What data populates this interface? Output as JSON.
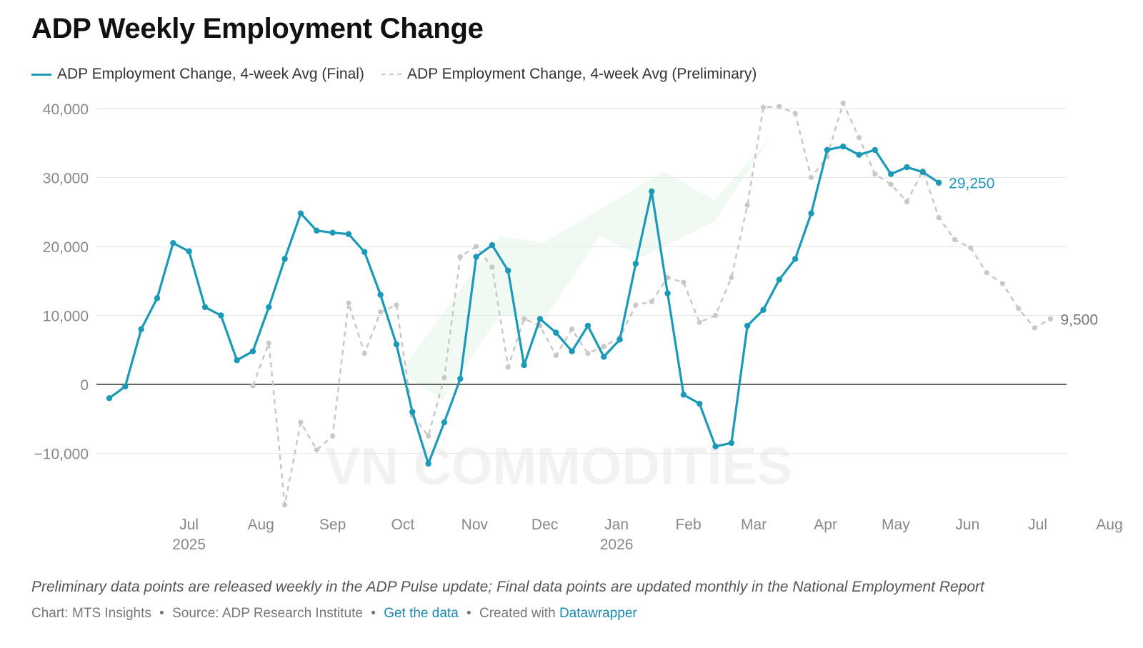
{
  "title": "ADP Weekly Employment Change",
  "legend": {
    "final": "ADP Employment Change, 4-week Avg (Final)",
    "preliminary": "ADP Employment Change, 4-week Avg (Preliminary)"
  },
  "footnote": "Preliminary data points are released weekly in the ADP Pulse update; Final data points are updated monthly in the National Employment Report",
  "credits": {
    "chart": "Chart: MTS Insights",
    "source": "Source: ADP Research Institute",
    "get_data": "Get the data",
    "created_with": "Created with",
    "datawrapper": "Datawrapper",
    "separator": "•"
  },
  "watermark": "VN COMMODITIES",
  "colors": {
    "final": "#1b9ab8",
    "preliminary": "#c8c8c8",
    "grid": "#e6e6e6",
    "zero": "#333333",
    "axis_text": "#888888"
  },
  "chart_data": {
    "type": "line",
    "title": "ADP Weekly Employment Change",
    "ylim": [
      -18000,
      41000
    ],
    "yticks": [
      {
        "value": 40000,
        "label": "40,000"
      },
      {
        "value": 30000,
        "label": "30,000"
      },
      {
        "value": 20000,
        "label": "20,000"
      },
      {
        "value": 10000,
        "label": "10,000"
      },
      {
        "value": 0,
        "label": "0"
      },
      {
        "value": -10000,
        "label": "−10,000"
      }
    ],
    "xticks": [
      {
        "week": 5,
        "label": "Jul",
        "sublabel": "2025"
      },
      {
        "week": 9.5,
        "label": "Aug",
        "sublabel": ""
      },
      {
        "week": 14,
        "label": "Sep",
        "sublabel": ""
      },
      {
        "week": 18.4,
        "label": "Oct",
        "sublabel": ""
      },
      {
        "week": 22.9,
        "label": "Nov",
        "sublabel": ""
      },
      {
        "week": 27.3,
        "label": "Dec",
        "sublabel": ""
      },
      {
        "week": 31.8,
        "label": "Jan",
        "sublabel": "2026"
      },
      {
        "week": 36.3,
        "label": "Feb",
        "sublabel": ""
      },
      {
        "week": 40.4,
        "label": "Mar",
        "sublabel": ""
      },
      {
        "week": 44.9,
        "label": "Apr",
        "sublabel": ""
      },
      {
        "week": 49.3,
        "label": "May",
        "sublabel": ""
      },
      {
        "week": 53.8,
        "label": "Jun",
        "sublabel": ""
      },
      {
        "week": 58.2,
        "label": "Jul",
        "sublabel": ""
      },
      {
        "week": 62.7,
        "label": "Aug",
        "sublabel": ""
      }
    ],
    "xlim": [
      0,
      63
    ],
    "series": [
      {
        "name": "ADP Employment Change, 4-week Avg (Final)",
        "style": "solid",
        "points": [
          [
            0,
            -2000
          ],
          [
            1,
            -300
          ],
          [
            2,
            8000
          ],
          [
            3,
            12500
          ],
          [
            4,
            20500
          ],
          [
            5,
            19300
          ],
          [
            6,
            11200
          ],
          [
            7,
            10000
          ],
          [
            8,
            3500
          ],
          [
            9,
            4800
          ],
          [
            10,
            11200
          ],
          [
            11,
            18200
          ],
          [
            12,
            24800
          ],
          [
            13,
            22300
          ],
          [
            14,
            22000
          ],
          [
            15,
            21800
          ],
          [
            16,
            19200
          ],
          [
            17,
            13000
          ],
          [
            18,
            5800
          ],
          [
            19,
            -4000
          ],
          [
            20,
            -11500
          ],
          [
            21,
            -5500
          ],
          [
            22,
            800
          ],
          [
            23,
            18500
          ],
          [
            24,
            20200
          ],
          [
            25,
            16500
          ],
          [
            26,
            2800
          ],
          [
            27,
            9500
          ],
          [
            28,
            7500
          ],
          [
            29,
            4800
          ],
          [
            30,
            8500
          ],
          [
            31,
            4000
          ],
          [
            32,
            6500
          ],
          [
            33,
            17500
          ],
          [
            34,
            28000
          ],
          [
            35,
            13200
          ],
          [
            36,
            -1500
          ],
          [
            37,
            -2800
          ],
          [
            38,
            -9000
          ],
          [
            39,
            -8500
          ],
          [
            40,
            8500
          ],
          [
            41,
            10800
          ],
          [
            42,
            15200
          ],
          [
            43,
            18200
          ],
          [
            44,
            24800
          ],
          [
            45,
            34000
          ],
          [
            46,
            34500
          ],
          [
            47,
            33300
          ],
          [
            48,
            34000
          ],
          [
            49,
            30500
          ],
          [
            50,
            31500
          ],
          [
            51,
            30800
          ],
          [
            52,
            29250
          ]
        ],
        "end_label": "29,250"
      },
      {
        "name": "ADP Employment Change, 4-week Avg (Preliminary)",
        "style": "dashed",
        "points": [
          [
            9,
            -200
          ],
          [
            10,
            6000
          ],
          [
            11,
            -17500
          ],
          [
            12,
            -5500
          ],
          [
            13,
            -9500
          ],
          [
            14,
            -7500
          ],
          [
            15,
            11800
          ],
          [
            16,
            4500
          ],
          [
            17,
            10500
          ],
          [
            18,
            11500
          ],
          [
            19,
            -4500
          ],
          [
            20,
            -7500
          ],
          [
            21,
            1000
          ],
          [
            22,
            18500
          ],
          [
            23,
            20000
          ],
          [
            24,
            17000
          ],
          [
            25,
            2500
          ],
          [
            26,
            9500
          ],
          [
            27,
            8500
          ],
          [
            28,
            4200
          ],
          [
            29,
            8000
          ],
          [
            30,
            4500
          ],
          [
            31,
            5500
          ],
          [
            32,
            6800
          ],
          [
            33,
            11500
          ],
          [
            34,
            12000
          ],
          [
            35,
            15500
          ],
          [
            36,
            14800
          ],
          [
            37,
            9000
          ],
          [
            38,
            10000
          ],
          [
            39,
            15500
          ],
          [
            40,
            26000
          ],
          [
            41,
            40200
          ],
          [
            42,
            40300
          ],
          [
            43,
            39300
          ],
          [
            44,
            30000
          ],
          [
            45,
            33000
          ],
          [
            46,
            40800
          ],
          [
            47,
            35800
          ],
          [
            48,
            30500
          ],
          [
            49,
            29000
          ],
          [
            50,
            26500
          ],
          [
            51,
            31000
          ],
          [
            52,
            24200
          ],
          [
            53,
            21000
          ],
          [
            54,
            19800
          ],
          [
            55,
            16200
          ],
          [
            56,
            14600
          ],
          [
            57,
            11000
          ],
          [
            58,
            8200
          ],
          [
            59,
            9500
          ]
        ],
        "end_label": "9,500"
      }
    ]
  }
}
